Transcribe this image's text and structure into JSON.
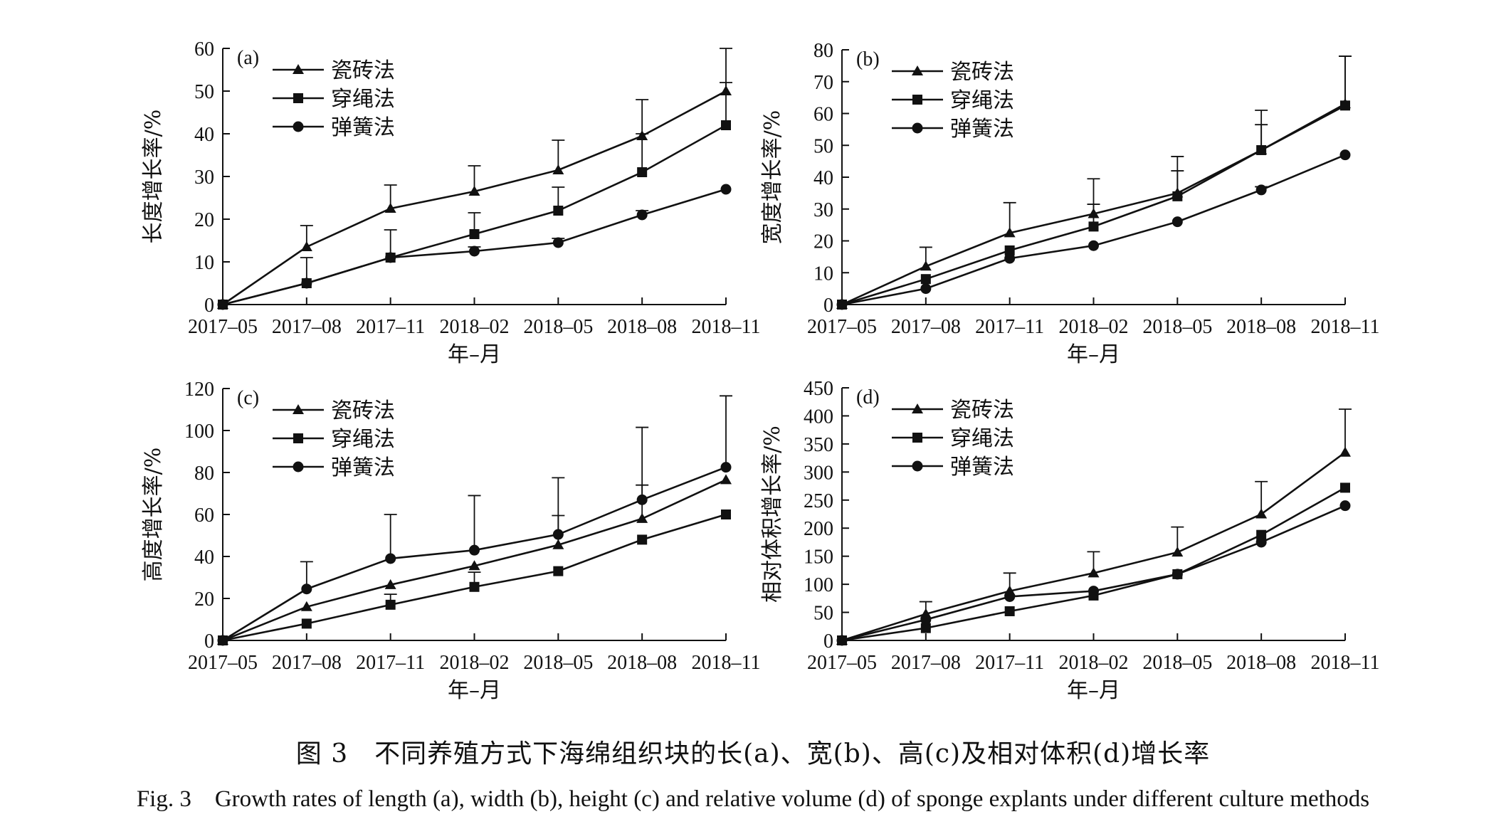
{
  "chart_data": [
    {
      "type": "line",
      "panel_label": "(a)",
      "ylabel": "长度增长率/%",
      "xlabel": "年–月",
      "categories": [
        "2017–05",
        "2017–08",
        "2017–11",
        "2018–02",
        "2018–05",
        "2018–08",
        "2018–11"
      ],
      "ylim": [
        0,
        60
      ],
      "yticks": [
        0,
        10,
        20,
        30,
        40,
        50,
        60
      ],
      "legend_position": "top-left",
      "series": [
        {
          "name": "瓷砖法",
          "marker": "triangle",
          "values": [
            0,
            13.5,
            22.5,
            26.5,
            31.5,
            39.5,
            50
          ],
          "errors": [
            0,
            5,
            5.5,
            6,
            7,
            8.5,
            10
          ]
        },
        {
          "name": "穿绳法",
          "marker": "square",
          "values": [
            0,
            5,
            11,
            16.5,
            22,
            31,
            42
          ],
          "errors": [
            0,
            6,
            6.5,
            5,
            5.5,
            9,
            10
          ]
        },
        {
          "name": "弹簧法",
          "marker": "circle",
          "values": [
            0,
            5,
            11,
            12.5,
            14.5,
            21,
            27
          ],
          "errors": [
            0,
            0,
            0,
            1,
            1,
            1,
            0
          ]
        }
      ]
    },
    {
      "type": "line",
      "panel_label": "(b)",
      "ylabel": "宽度增长率/%",
      "xlabel": "年–月",
      "categories": [
        "2017–05",
        "2017–08",
        "2017–11",
        "2018–02",
        "2018–05",
        "2018–08",
        "2018–11"
      ],
      "ylim": [
        0,
        80
      ],
      "yticks": [
        0,
        10,
        20,
        30,
        40,
        50,
        60,
        70,
        80
      ],
      "legend_position": "top-left",
      "series": [
        {
          "name": "瓷砖法",
          "marker": "triangle",
          "values": [
            0,
            12,
            22.5,
            28.5,
            35,
            48.5,
            63
          ],
          "errors": [
            0,
            6,
            9.5,
            11,
            11.5,
            12.5,
            15
          ]
        },
        {
          "name": "穿绳法",
          "marker": "square",
          "values": [
            0,
            8,
            17,
            24.5,
            34,
            48.5,
            62.5
          ],
          "errors": [
            0,
            0,
            0,
            7,
            8,
            8,
            15.5
          ]
        },
        {
          "name": "弹簧法",
          "marker": "circle",
          "values": [
            0,
            5,
            14.5,
            18.5,
            26,
            36,
            47
          ],
          "errors": [
            0,
            0,
            0,
            0,
            0,
            1,
            0
          ]
        }
      ]
    },
    {
      "type": "line",
      "panel_label": "(c)",
      "ylabel": "高度增长率/%",
      "xlabel": "年–月",
      "categories": [
        "2017–05",
        "2017–08",
        "2017–11",
        "2018–02",
        "2018–05",
        "2018–08",
        "2018–11"
      ],
      "ylim": [
        0,
        120
      ],
      "yticks": [
        0,
        20,
        40,
        60,
        80,
        100,
        120
      ],
      "legend_position": "top-left",
      "series": [
        {
          "name": "瓷砖法",
          "marker": "triangle",
          "values": [
            0,
            16,
            26.5,
            35.5,
            45.5,
            58,
            76.5
          ],
          "errors": [
            0,
            0,
            0,
            0,
            14,
            16,
            0
          ]
        },
        {
          "name": "穿绳法",
          "marker": "square",
          "values": [
            0,
            8,
            17,
            25.5,
            33,
            48,
            60
          ],
          "errors": [
            0,
            0,
            5,
            7,
            0,
            0,
            0
          ]
        },
        {
          "name": "弹簧法",
          "marker": "circle",
          "values": [
            0,
            24.5,
            39,
            43,
            50.5,
            67,
            82.5
          ],
          "errors": [
            0,
            13,
            21,
            26,
            27,
            34.5,
            34
          ]
        }
      ]
    },
    {
      "type": "line",
      "panel_label": "(d)",
      "ylabel": "相对体积增长率/%",
      "xlabel": "年–月",
      "categories": [
        "2017–05",
        "2017–08",
        "2017–11",
        "2018–02",
        "2018–05",
        "2018–08",
        "2018–11"
      ],
      "ylim": [
        0,
        450
      ],
      "yticks": [
        0,
        50,
        100,
        150,
        200,
        250,
        300,
        350,
        400,
        450
      ],
      "legend_position": "top-left",
      "series": [
        {
          "name": "瓷砖法",
          "marker": "triangle",
          "values": [
            0,
            47,
            88,
            120,
            157,
            225,
            335
          ],
          "errors": [
            0,
            22,
            32,
            38,
            45,
            58,
            77
          ]
        },
        {
          "name": "穿绳法",
          "marker": "square",
          "values": [
            0,
            22,
            52,
            80,
            118,
            188,
            272
          ],
          "errors": [
            0,
            0,
            0,
            0,
            0,
            0,
            0
          ]
        },
        {
          "name": "弹簧法",
          "marker": "circle",
          "values": [
            0,
            37,
            78,
            88,
            118,
            175,
            240
          ],
          "errors": [
            0,
            0,
            0,
            0,
            0,
            0,
            0
          ]
        }
      ]
    }
  ],
  "caption": {
    "chinese": "图 3　不同养殖方式下海绵组织块的长(a)、宽(b)、高(c)及相对体积(d)增长率",
    "english": "Fig. 3　Growth rates of length (a), width (b), height (c) and relative volume (d) of sponge explants under different culture methods"
  },
  "colors": {
    "line": "#111111",
    "axis": "#111111",
    "background": "#ffffff"
  }
}
